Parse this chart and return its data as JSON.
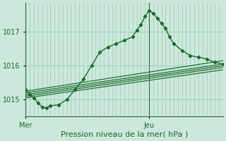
{
  "background_color": "#cce8dc",
  "plot_bg_color": "#cce8dc",
  "grid_color": "#99ccb8",
  "line_color": "#1a6b2a",
  "spine_color": "#336644",
  "title": "Pression niveau de la mer( hPa )",
  "ylim": [
    1014.5,
    1017.85
  ],
  "xlim": [
    0,
    96
  ],
  "yticks": [
    1015,
    1016,
    1017
  ],
  "mer_x": 0,
  "jeu_x": 60,
  "figsize": [
    3.2,
    2.0
  ],
  "dpi": 100,
  "main_x": [
    0,
    2,
    4,
    6,
    8,
    10,
    12,
    16,
    20,
    24,
    28,
    32,
    36,
    40,
    44,
    48,
    52,
    54,
    56,
    58,
    60,
    62,
    64,
    66,
    68,
    70,
    72,
    76,
    80,
    84,
    88,
    92,
    96
  ],
  "main_y": [
    1015.3,
    1015.15,
    1015.05,
    1014.9,
    1014.78,
    1014.75,
    1014.82,
    1014.85,
    1015.0,
    1015.3,
    1015.6,
    1016.0,
    1016.4,
    1016.55,
    1016.65,
    1016.75,
    1016.85,
    1017.05,
    1017.2,
    1017.45,
    1017.62,
    1017.55,
    1017.4,
    1017.25,
    1017.1,
    1016.85,
    1016.65,
    1016.45,
    1016.3,
    1016.25,
    1016.2,
    1016.1,
    1016.05
  ],
  "line1_x": [
    0,
    96
  ],
  "line1_y": [
    1015.2,
    1016.05
  ],
  "line2_x": [
    0,
    96
  ],
  "line2_y": [
    1015.15,
    1016.0
  ],
  "line3_x": [
    0,
    96
  ],
  "line3_y": [
    1015.1,
    1015.95
  ],
  "line4_x": [
    0,
    96
  ],
  "line4_y": [
    1015.05,
    1015.88
  ],
  "upper_line_x": [
    0,
    96
  ],
  "upper_line_y": [
    1015.25,
    1016.15
  ],
  "n_vertical_lines": 48,
  "title_fontsize": 8,
  "tick_fontsize": 7
}
